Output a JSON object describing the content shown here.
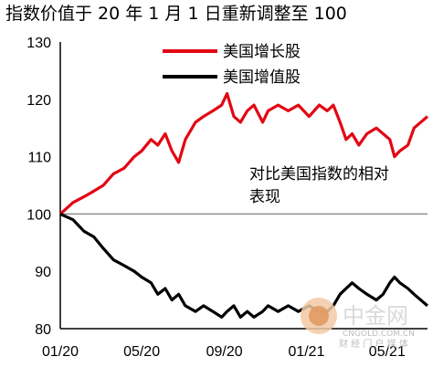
{
  "title": "指数价值于 20 年 1 月 1 日重新调整至 100",
  "annotation": [
    "对比美国指数的相对",
    "表现"
  ],
  "watermark": {
    "brand": "中金网",
    "site": "CNGOLD.COM.CN",
    "tagline": "财 经 门 户 媒 体"
  },
  "colors": {
    "growth": "#e30613",
    "value": "#000000",
    "reference": "#808080"
  },
  "chart_data": {
    "type": "line",
    "title": "指数价值于 20 年 1 月 1 日重新调整至 100",
    "xlabel": "",
    "ylabel": "",
    "x_ticks": [
      "01/20",
      "05/20",
      "09/20",
      "01/21",
      "05/21"
    ],
    "x_range": [
      "2020-01-01",
      "2021-06-30"
    ],
    "y_ticks": [
      80,
      90,
      100,
      110,
      120,
      130
    ],
    "ylim": [
      80,
      130
    ],
    "reference_line": 100,
    "legend_position": "top-center",
    "grid": false,
    "series": [
      {
        "name": "美国增长股",
        "color": "#e30613",
        "points": [
          [
            "2020-01-01",
            100
          ],
          [
            "2020-01-20",
            102
          ],
          [
            "2020-02-05",
            103
          ],
          [
            "2020-02-20",
            104
          ],
          [
            "2020-03-05",
            105
          ],
          [
            "2020-03-20",
            107
          ],
          [
            "2020-04-05",
            108
          ],
          [
            "2020-04-20",
            110
          ],
          [
            "2020-05-01",
            111
          ],
          [
            "2020-05-15",
            113
          ],
          [
            "2020-05-25",
            112
          ],
          [
            "2020-06-05",
            114
          ],
          [
            "2020-06-15",
            111
          ],
          [
            "2020-06-25",
            109
          ],
          [
            "2020-07-05",
            113
          ],
          [
            "2020-07-20",
            116
          ],
          [
            "2020-08-01",
            117
          ],
          [
            "2020-08-15",
            118
          ],
          [
            "2020-08-28",
            119
          ],
          [
            "2020-09-05",
            121
          ],
          [
            "2020-09-15",
            117
          ],
          [
            "2020-09-25",
            116
          ],
          [
            "2020-10-05",
            118
          ],
          [
            "2020-10-15",
            119
          ],
          [
            "2020-10-28",
            116
          ],
          [
            "2020-11-05",
            118
          ],
          [
            "2020-11-20",
            119
          ],
          [
            "2020-12-05",
            118
          ],
          [
            "2020-12-20",
            119
          ],
          [
            "2021-01-05",
            117
          ],
          [
            "2021-01-20",
            119
          ],
          [
            "2021-02-01",
            118
          ],
          [
            "2021-02-10",
            119
          ],
          [
            "2021-02-20",
            116
          ],
          [
            "2021-03-01",
            113
          ],
          [
            "2021-03-10",
            114
          ],
          [
            "2021-03-20",
            112
          ],
          [
            "2021-04-01",
            114
          ],
          [
            "2021-04-15",
            115
          ],
          [
            "2021-04-25",
            114
          ],
          [
            "2021-05-05",
            113
          ],
          [
            "2021-05-12",
            110
          ],
          [
            "2021-05-20",
            111
          ],
          [
            "2021-06-01",
            112
          ],
          [
            "2021-06-10",
            115
          ],
          [
            "2021-06-20",
            116
          ],
          [
            "2021-06-30",
            117
          ]
        ]
      },
      {
        "name": "美国增值股",
        "color": "#000000",
        "points": [
          [
            "2020-01-01",
            100
          ],
          [
            "2020-01-20",
            99
          ],
          [
            "2020-02-05",
            97
          ],
          [
            "2020-02-20",
            96
          ],
          [
            "2020-03-05",
            94
          ],
          [
            "2020-03-20",
            92
          ],
          [
            "2020-04-05",
            91
          ],
          [
            "2020-04-20",
            90
          ],
          [
            "2020-05-01",
            89
          ],
          [
            "2020-05-15",
            88
          ],
          [
            "2020-05-25",
            86
          ],
          [
            "2020-06-05",
            87
          ],
          [
            "2020-06-15",
            85
          ],
          [
            "2020-06-25",
            86
          ],
          [
            "2020-07-05",
            84
          ],
          [
            "2020-07-20",
            83
          ],
          [
            "2020-08-01",
            84
          ],
          [
            "2020-08-15",
            83
          ],
          [
            "2020-08-28",
            82
          ],
          [
            "2020-09-05",
            83
          ],
          [
            "2020-09-15",
            84
          ],
          [
            "2020-09-25",
            82
          ],
          [
            "2020-10-05",
            83
          ],
          [
            "2020-10-15",
            82
          ],
          [
            "2020-10-28",
            83
          ],
          [
            "2020-11-05",
            84
          ],
          [
            "2020-11-20",
            83
          ],
          [
            "2020-12-05",
            84
          ],
          [
            "2020-12-20",
            83
          ],
          [
            "2021-01-05",
            84
          ],
          [
            "2021-01-20",
            83
          ],
          [
            "2021-02-01",
            83
          ],
          [
            "2021-02-10",
            84
          ],
          [
            "2021-02-20",
            86
          ],
          [
            "2021-03-01",
            87
          ],
          [
            "2021-03-10",
            88
          ],
          [
            "2021-03-20",
            87
          ],
          [
            "2021-04-01",
            86
          ],
          [
            "2021-04-15",
            85
          ],
          [
            "2021-04-25",
            86
          ],
          [
            "2021-05-05",
            88
          ],
          [
            "2021-05-12",
            89
          ],
          [
            "2021-05-20",
            88
          ],
          [
            "2021-06-01",
            87
          ],
          [
            "2021-06-10",
            86
          ],
          [
            "2021-06-20",
            85
          ],
          [
            "2021-06-30",
            84
          ]
        ]
      }
    ]
  }
}
